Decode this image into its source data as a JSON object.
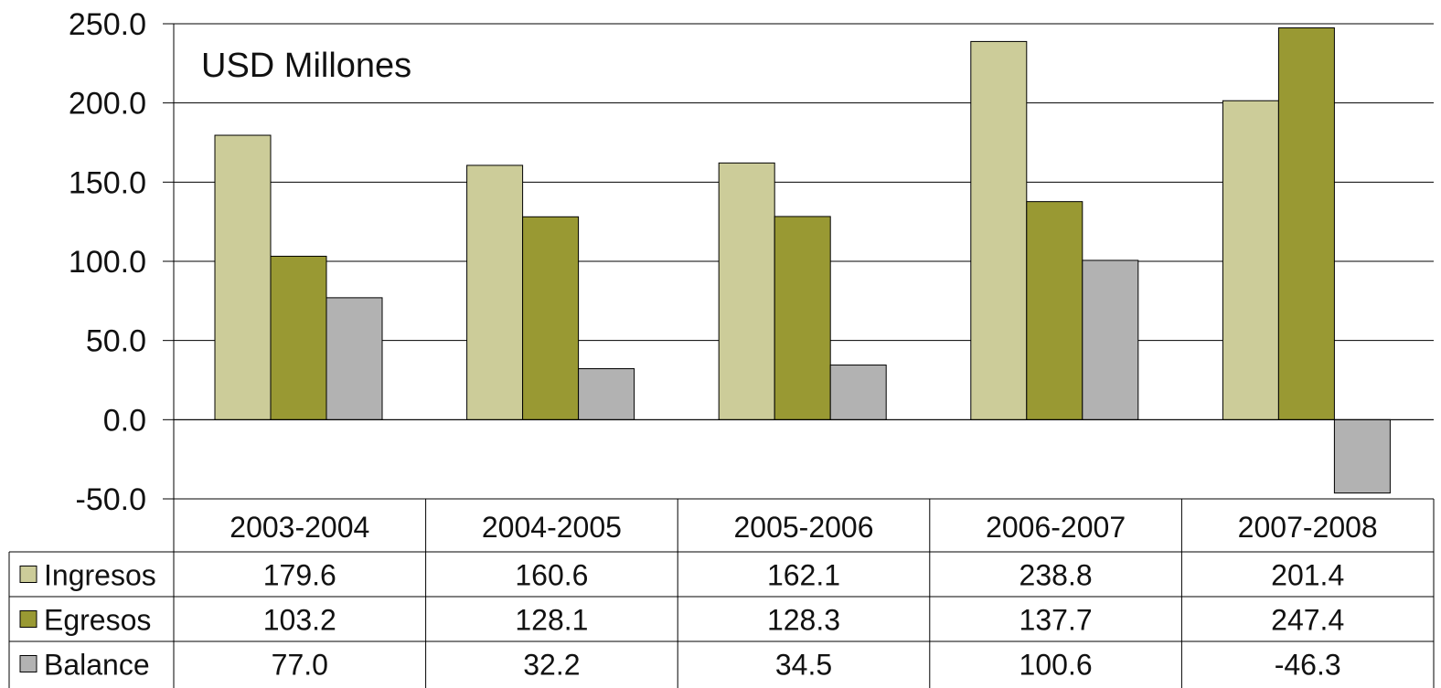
{
  "chart_data": {
    "type": "bar",
    "title": "USD Millones",
    "categories": [
      "2003-2004",
      "2004-2005",
      "2005-2006",
      "2006-2007",
      "2007-2008"
    ],
    "series": [
      {
        "name": "Ingresos",
        "color": "#CCCC99",
        "values": [
          179.6,
          160.6,
          162.1,
          238.8,
          201.4
        ],
        "labels": [
          "179.6",
          "160.6",
          "162.1",
          "238.8",
          "201.4"
        ]
      },
      {
        "name": "Egresos",
        "color": "#999933",
        "values": [
          103.2,
          128.1,
          128.3,
          137.7,
          247.4
        ],
        "labels": [
          "103.2",
          "128.1",
          "128.3",
          "137.7",
          "247.4"
        ]
      },
      {
        "name": "Balance",
        "color": "#B2B2B2",
        "values": [
          77.0,
          32.2,
          34.5,
          100.6,
          -46.3
        ],
        "labels": [
          "77.0",
          "32.2",
          "34.5",
          "100.6",
          "-46.3"
        ]
      }
    ],
    "ylim": [
      -50,
      250
    ],
    "yticks": [
      -50,
      0,
      50,
      100,
      150,
      200,
      250
    ],
    "ytick_labels": [
      "-50.0",
      "0.0",
      "50.0",
      "100.0",
      "150.0",
      "200.0",
      "250.0"
    ],
    "grid": true,
    "legend": "data-table-left"
  }
}
